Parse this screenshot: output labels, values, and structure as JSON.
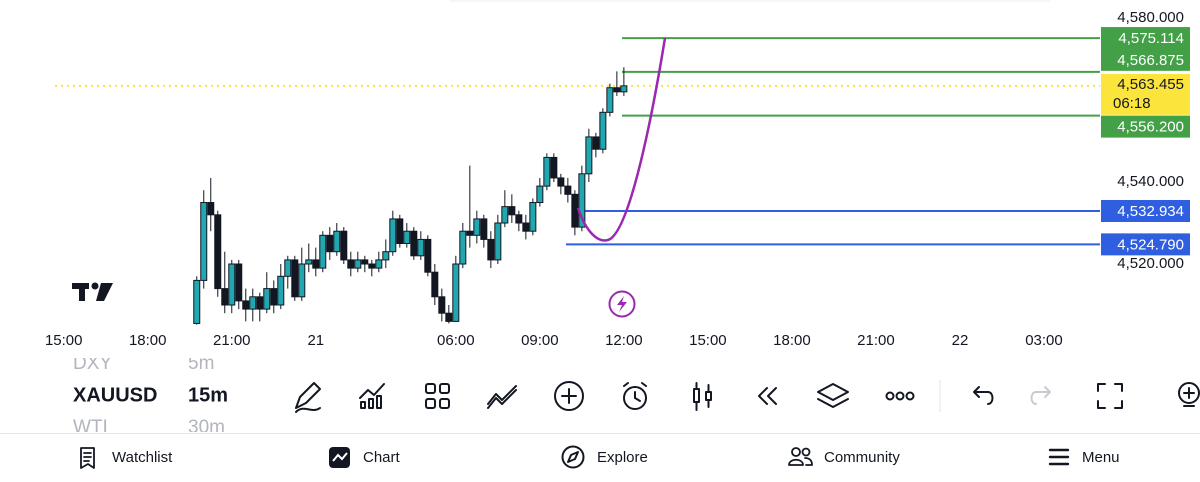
{
  "chart_data": {
    "type": "candlestick",
    "x": [
      -2,
      -1,
      0,
      1,
      2,
      3,
      4,
      5,
      6,
      7,
      8,
      9,
      10,
      11,
      12,
      13,
      14,
      15,
      16,
      17,
      18,
      19,
      20,
      21,
      22,
      23,
      24,
      25,
      26,
      27,
      28,
      29,
      30,
      31,
      32,
      33,
      34,
      35,
      36,
      37,
      38,
      39,
      40,
      41,
      42,
      43,
      44,
      45,
      46,
      47,
      48,
      49,
      50,
      51,
      52,
      53,
      54,
      55,
      56,
      57,
      58,
      59
    ],
    "open": [
      4505.5,
      4516,
      4535,
      4532,
      4514,
      4510,
      4520,
      4511,
      4509,
      4512,
      4509,
      4514,
      4510,
      4517,
      4521,
      4512,
      4520,
      4521,
      4519,
      4527,
      4523,
      4528,
      4521,
      4519,
      4521,
      4520,
      4519,
      4521,
      4523,
      4531,
      4525,
      4528,
      4522,
      4526,
      4518,
      4512,
      4508,
      4506,
      4520,
      4528,
      4527,
      4531,
      4526,
      4521,
      4530,
      4534,
      4532,
      4530,
      4528,
      4535,
      4539,
      4546,
      4541,
      4539,
      4537,
      4529,
      4542,
      4551,
      4548,
      4557,
      4563,
      4562
    ],
    "high": [
      4517,
      4538,
      4541,
      4533,
      4523,
      4521,
      4521,
      4514,
      4514,
      4513,
      4518,
      4516,
      4520,
      4522,
      4522,
      4524,
      4525,
      4524,
      4528,
      4529,
      4530,
      4529,
      4523,
      4523,
      4522,
      4521,
      4523,
      4526,
      4533,
      4532,
      4530,
      4529,
      4528,
      4527,
      4520,
      4514,
      4510,
      4522,
      4530,
      4544,
      4533,
      4532,
      4528,
      4532,
      4538,
      4537,
      4533,
      4532,
      4536,
      4541,
      4547,
      4547,
      4542,
      4541,
      4538,
      4544,
      4553,
      4552,
      4558,
      4564,
      4567,
      4568
    ],
    "low": [
      4505.2,
      4514,
      4528,
      4512,
      4508,
      4508,
      4509,
      4506,
      4506,
      4506,
      4508,
      4508,
      4509,
      4514,
      4511,
      4511,
      4518,
      4517,
      4518,
      4521,
      4522,
      4520,
      4517,
      4518,
      4518,
      4517,
      4518,
      4519,
      4522,
      4524,
      4524,
      4521,
      4521,
      4517,
      4510,
      4506,
      4505.5,
      4506,
      4519,
      4524,
      4525,
      4524,
      4519,
      4520,
      4529,
      4530,
      4528,
      4526,
      4527,
      4534,
      4538,
      4540,
      4537,
      4535,
      4527,
      4528,
      4540,
      4546,
      4547,
      4556,
      4561,
      4561
    ],
    "close": [
      4516,
      4535,
      4532,
      4514,
      4510,
      4520,
      4511,
      4509,
      4512,
      4509,
      4514,
      4510,
      4517,
      4521,
      4512,
      4520,
      4521,
      4519,
      4527,
      4523,
      4528,
      4521,
      4519,
      4521,
      4520,
      4519,
      4521,
      4523,
      4531,
      4525,
      4528,
      4522,
      4526,
      4518,
      4512,
      4508,
      4506,
      4520,
      4528,
      4527,
      4531,
      4526,
      4521,
      4530,
      4534,
      4532,
      4530,
      4528,
      4535,
      4539,
      4546,
      4541,
      4539,
      4537,
      4529,
      4542,
      4551,
      4548,
      4557,
      4563,
      4562,
      4563.455
    ],
    "up_color": "#22a7b0",
    "down_color": "#131722",
    "xlim": [
      -30.1,
      127
    ],
    "xticks": [
      {
        "value": -21,
        "label": "15:00"
      },
      {
        "value": -9,
        "label": "18:00"
      },
      {
        "value": 3,
        "label": "21:00"
      },
      {
        "value": 15,
        "label": "21"
      },
      {
        "value": 35,
        "label": "06:00"
      },
      {
        "value": 47,
        "label": "09:00"
      },
      {
        "value": 59,
        "label": "12:00"
      },
      {
        "value": 71,
        "label": "15:00"
      },
      {
        "value": 83,
        "label": "18:00"
      },
      {
        "value": 95,
        "label": "21:00"
      },
      {
        "value": 107,
        "label": "22"
      },
      {
        "value": 119,
        "label": "03:00"
      }
    ],
    "ylim": [
      4505,
      4584.4
    ],
    "yticks": [
      {
        "value": 4580,
        "label": "4,580.000"
      },
      {
        "value": 4540,
        "label": "4,540.000"
      },
      {
        "value": 4520,
        "label": "4,520.000"
      }
    ],
    "grid": false,
    "levels": {
      "values": [
        4575.114,
        4566.875,
        4556.2,
        4532.934,
        4524.79
      ],
      "value_labels": [
        "4,575.114",
        "4,566.875",
        "4,556.200",
        "4,532.934",
        "4,524.790"
      ],
      "colors": [
        "#43a047",
        "#43a047",
        "#43a047",
        "#2f5fe0",
        "#2f5fe0"
      ]
    },
    "last_price": {
      "value": 4563.455,
      "label": "4,563.455",
      "countdown": "06:18",
      "color": "#fbe43c"
    }
  },
  "symbols": [
    {
      "name": "DXY",
      "interval": "5m"
    },
    {
      "name": "XAUUSD",
      "interval": "15m"
    },
    {
      "name": "WTI",
      "interval": "30m"
    }
  ],
  "nav": [
    "Watchlist",
    "Chart",
    "Explore",
    "Community",
    "Menu"
  ]
}
